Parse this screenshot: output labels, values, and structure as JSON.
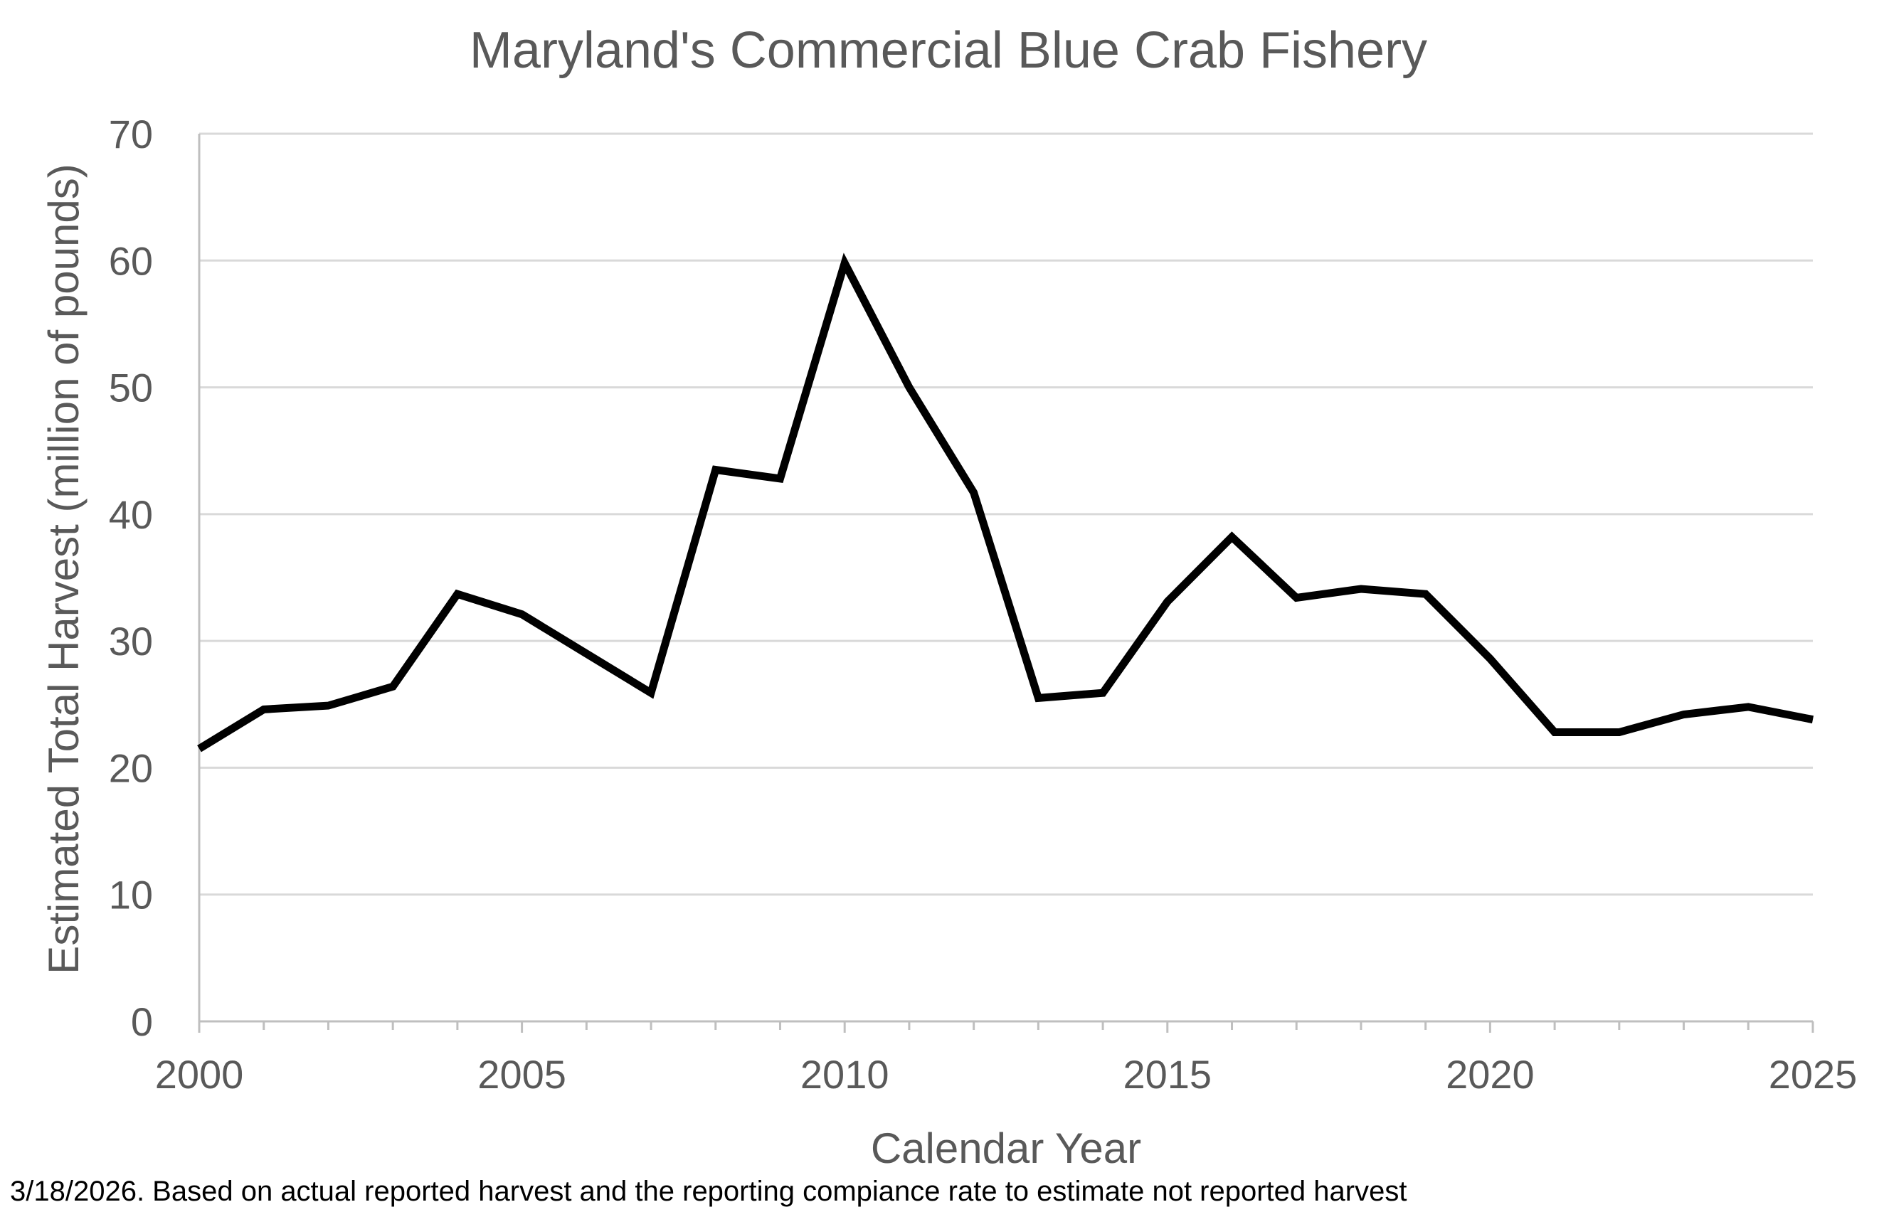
{
  "chart_data": {
    "type": "line",
    "title": "Maryland's Commercial Blue Crab Fishery",
    "xlabel": "Calendar Year",
    "ylabel": "Estimated  Total Harvest (million of pounds)",
    "footnote": "3/18/2026. Based on actual reported harvest and the reporting compiance rate to estimate not reported harvest",
    "xlim": [
      2000,
      2025
    ],
    "ylim": [
      0,
      70
    ],
    "x_ticks": [
      2000,
      2005,
      2010,
      2015,
      2020,
      2025
    ],
    "y_ticks": [
      0,
      10,
      20,
      30,
      40,
      50,
      60,
      70
    ],
    "grid": true,
    "legend": "none",
    "series_color": "#000000",
    "series": [
      {
        "x": [
          2000,
          2001,
          2002,
          2003,
          2004,
          2005,
          2006,
          2007,
          2008,
          2009,
          2010,
          2011,
          2012,
          2013,
          2014,
          2015,
          2016,
          2017,
          2018,
          2019,
          2020,
          2021,
          2022,
          2023,
          2024,
          2025
        ],
        "values": [
          21.5,
          24.6,
          24.9,
          26.4,
          33.7,
          32.1,
          29.0,
          25.9,
          43.5,
          42.8,
          59.8,
          50.0,
          41.7,
          25.5,
          25.9,
          33.1,
          38.2,
          33.4,
          34.1,
          33.7,
          28.6,
          22.8,
          22.8,
          24.2,
          24.8,
          23.8
        ]
      }
    ]
  }
}
